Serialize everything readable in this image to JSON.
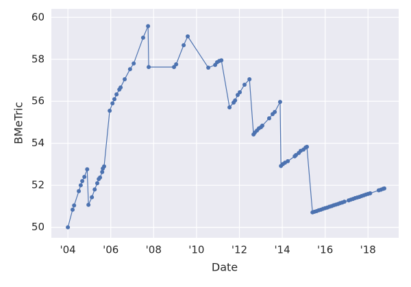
{
  "chart_data": {
    "type": "line",
    "x_label": "Date",
    "y_label": "BMeTric",
    "color": "#4c72b0",
    "grid": true,
    "x": [
      2004.0,
      2004.22,
      2004.29,
      2004.51,
      2004.6,
      2004.67,
      2004.77,
      2004.9,
      2004.96,
      2005.12,
      2005.25,
      2005.37,
      2005.44,
      2005.5,
      2005.6,
      2005.63,
      2005.69,
      2005.95,
      2006.08,
      2006.17,
      2006.27,
      2006.4,
      2006.46,
      2006.65,
      2006.9,
      2007.07,
      2007.51,
      2007.74,
      2007.77,
      2008.95,
      2009.05,
      2009.4,
      2009.59,
      2010.55,
      2010.87,
      2010.96,
      2011.06,
      2011.16,
      2011.54,
      2011.73,
      2011.8,
      2011.92,
      2012.02,
      2012.24,
      2012.47,
      2012.66,
      2012.72,
      2012.82,
      2012.91,
      2013.01,
      2013.07,
      2013.39,
      2013.55,
      2013.65,
      2013.9,
      2013.94,
      2014.03,
      2014.13,
      2014.26,
      2014.58,
      2014.64,
      2014.77,
      2014.86,
      2014.99,
      2015.09,
      2015.15,
      2015.41,
      2015.5,
      2015.6,
      2015.7,
      2015.8,
      2015.9,
      2016.0,
      2016.1,
      2016.2,
      2016.3,
      2016.4,
      2016.5,
      2016.6,
      2016.7,
      2016.8,
      2016.9,
      2017.1,
      2017.2,
      2017.3,
      2017.4,
      2017.5,
      2017.6,
      2017.7,
      2017.8,
      2017.9,
      2018.0,
      2018.1,
      2018.5,
      2018.6,
      2018.7,
      2018.76
    ],
    "values": [
      50.0,
      50.84,
      51.04,
      51.72,
      52.0,
      52.2,
      52.4,
      52.76,
      51.07,
      51.43,
      51.8,
      52.1,
      52.3,
      52.37,
      52.63,
      52.8,
      52.9,
      55.55,
      55.9,
      56.1,
      56.33,
      56.56,
      56.66,
      57.05,
      57.53,
      57.8,
      59.03,
      59.58,
      57.63,
      57.63,
      57.76,
      58.67,
      59.09,
      57.6,
      57.73,
      57.86,
      57.92,
      57.95,
      55.71,
      55.94,
      56.04,
      56.3,
      56.43,
      56.79,
      57.05,
      54.42,
      54.51,
      54.61,
      54.71,
      54.77,
      54.84,
      55.19,
      55.39,
      55.49,
      55.97,
      52.92,
      53.01,
      53.08,
      53.15,
      53.38,
      53.44,
      53.54,
      53.64,
      53.7,
      53.8,
      53.83,
      50.71,
      50.74,
      50.77,
      50.81,
      50.84,
      50.88,
      50.91,
      50.94,
      50.98,
      51.01,
      51.05,
      51.08,
      51.11,
      51.15,
      51.18,
      51.22,
      51.28,
      51.32,
      51.35,
      51.39,
      51.42,
      51.45,
      51.49,
      51.52,
      51.56,
      51.59,
      51.62,
      51.76,
      51.79,
      51.83,
      51.85
    ],
    "xlim": [
      2003.23,
      2019.43
    ],
    "xticks": [
      {
        "value": 2004,
        "label": "'04"
      },
      {
        "value": 2006,
        "label": "'06"
      },
      {
        "value": 2008,
        "label": "'08"
      },
      {
        "value": 2010,
        "label": "'10"
      },
      {
        "value": 2012,
        "label": "'12"
      },
      {
        "value": 2014,
        "label": "'14"
      },
      {
        "value": 2016,
        "label": "'16"
      },
      {
        "value": 2018,
        "label": "'18"
      }
    ],
    "ylim": [
      49.5,
      60.4
    ],
    "yticks": [
      50,
      52,
      54,
      56,
      58,
      60
    ]
  }
}
